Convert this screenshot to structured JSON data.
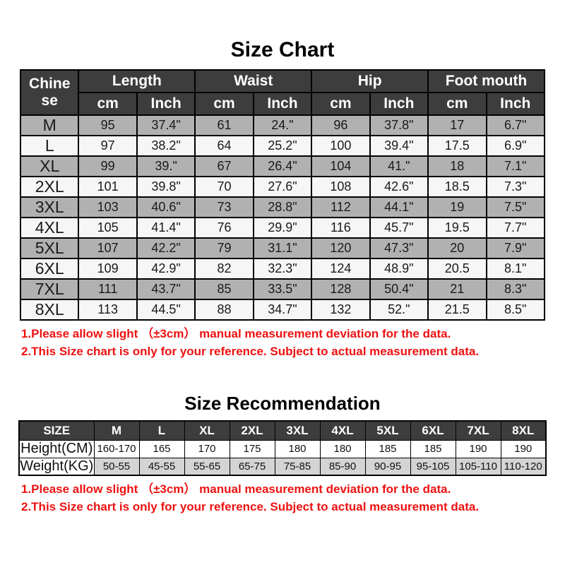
{
  "colors": {
    "header_bg": "#3d3d3d",
    "row_gray": "#b1b1b1",
    "row_light": "#f6f6f6",
    "weight_bg": "#d4d4d4",
    "note_red": "#ee1111",
    "border_color": "#000000"
  },
  "chart_data": [
    {
      "type": "table",
      "title": "Size Chart",
      "column_groups": [
        "Chinese",
        "Length",
        "Waist",
        "Hip",
        "Foot mouth"
      ],
      "chinese_header_lines": [
        "Chine",
        "se"
      ],
      "sub_headers": [
        "cm",
        "Inch"
      ],
      "rows": [
        [
          "M",
          "95",
          "37.4\"",
          "61",
          "24.\"",
          "96",
          "37.8\"",
          "17",
          "6.7\""
        ],
        [
          "L",
          "97",
          "38.2\"",
          "64",
          "25.2\"",
          "100",
          "39.4\"",
          "17.5",
          "6.9\""
        ],
        [
          "XL",
          "99",
          "39.\"",
          "67",
          "26.4\"",
          "104",
          "41.\"",
          "18",
          "7.1\""
        ],
        [
          "2XL",
          "101",
          "39.8\"",
          "70",
          "27.6\"",
          "108",
          "42.6\"",
          "18.5",
          "7.3\""
        ],
        [
          "3XL",
          "103",
          "40.6\"",
          "73",
          "28.8\"",
          "112",
          "44.1\"",
          "19",
          "7.5\""
        ],
        [
          "4XL",
          "105",
          "41.4\"",
          "76",
          "29.9\"",
          "116",
          "45.7\"",
          "19.5",
          "7.7\""
        ],
        [
          "5XL",
          "107",
          "42.2\"",
          "79",
          "31.1\"",
          "120",
          "47.3\"",
          "20",
          "7.9\""
        ],
        [
          "6XL",
          "109",
          "42.9\"",
          "82",
          "32.3\"",
          "124",
          "48.9\"",
          "20.5",
          "8.1\""
        ],
        [
          "7XL",
          "111",
          "43.7\"",
          "85",
          "33.5\"",
          "128",
          "50.4\"",
          "21",
          "8.3\""
        ],
        [
          "8XL",
          "113",
          "44.5\"",
          "88",
          "34.7\"",
          "132",
          "52.\"",
          "21.5",
          "8.5\""
        ]
      ],
      "notes": [
        "1.Please allow slight （±3cm） manual measurement deviation for the data.",
        "2.This Size chart is only for your reference. Subject to actual measurement data."
      ]
    },
    {
      "type": "table",
      "title": "Size Recommendation",
      "headers": [
        "SIZE",
        "M",
        "L",
        "XL",
        "2XL",
        "3XL",
        "4XL",
        "5XL",
        "6XL",
        "7XL",
        "8XL"
      ],
      "rows": [
        [
          "Height(CM)",
          "160-170",
          "165",
          "170",
          "175",
          "180",
          "180",
          "185",
          "185",
          "190",
          "190"
        ],
        [
          "Weight(KG)",
          "50-55",
          "45-55",
          "55-65",
          "65-75",
          "75-85",
          "85-90",
          "90-95",
          "95-105",
          "105-110",
          "110-120"
        ]
      ],
      "notes": [
        "1.Please allow slight （±3cm） manual measurement deviation for the data.",
        "2.This Size chart is only for your reference. Subject to actual measurement data."
      ]
    }
  ]
}
